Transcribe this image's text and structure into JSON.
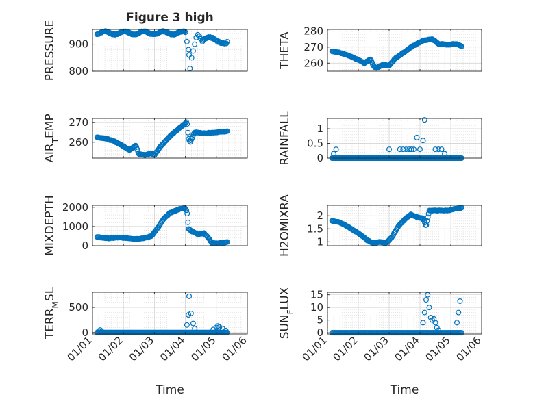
{
  "figure_title": "Figure 3 high",
  "colors": {
    "marker": "#0072BD",
    "axis": "#262626",
    "grid": "#d9d9d9",
    "background": "#ffffff"
  },
  "chart_data": [
    {
      "id": "pressure",
      "type": "scatter",
      "title": "Figure 3 high",
      "ylabel": "PRESSURE",
      "ylabel_base": "PRESSURE",
      "ylabel_sub": "",
      "ylabel_rest": "",
      "ylim": [
        800,
        955
      ],
      "yticks": [
        800,
        900
      ],
      "ytick_labels": [
        "800",
        "900"
      ],
      "xlim": [
        1,
        6
      ],
      "xticks": [
        1,
        2,
        3,
        4,
        5,
        6
      ],
      "xtick_labels": [
        "01/01",
        "01/02",
        "01/03",
        "01/04",
        "01/05",
        "01/06"
      ],
      "show_xticklabels": false,
      "xlabel": "",
      "grid": true,
      "minor_grid": true,
      "segments": [
        {
          "x0": 1.15,
          "x1": 4.0,
          "n": 120,
          "base": 942,
          "amp": 6,
          "freq": 3.2,
          "jitter": 3
        },
        {
          "x0": 4.02,
          "x1": 4.55,
          "n": 24,
          "points": [
            [
              4.05,
              910
            ],
            [
              4.1,
              880
            ],
            [
              4.12,
              860
            ],
            [
              4.15,
              810
            ],
            [
              4.2,
              850
            ],
            [
              4.25,
              875
            ],
            [
              4.3,
              900
            ],
            [
              4.35,
              925
            ],
            [
              4.4,
              935
            ],
            [
              4.45,
              930
            ],
            [
              4.5,
              920
            ],
            [
              4.55,
              910
            ]
          ]
        },
        {
          "x0": 4.55,
          "x1": 5.35,
          "n": 30,
          "base": 915,
          "amp": 12,
          "freq": 2.2,
          "jitter": 6
        }
      ]
    },
    {
      "id": "theta",
      "type": "scatter",
      "ylabel": "THETA",
      "ylabel_base": "THETA",
      "ylabel_sub": "",
      "ylabel_rest": "",
      "ylim": [
        255,
        281
      ],
      "yticks": [
        260,
        270,
        280
      ],
      "ytick_labels": [
        "260",
        "270",
        "280"
      ],
      "xlim": [
        1,
        6
      ],
      "xticks": [
        1,
        2,
        3,
        4,
        5,
        6
      ],
      "xtick_labels": [
        "01/01",
        "01/02",
        "01/03",
        "01/04",
        "01/05",
        "01/06"
      ],
      "show_xticklabels": false,
      "xlabel": "",
      "grid": true,
      "minor_grid": true,
      "curve": [
        [
          1.15,
          267.5
        ],
        [
          1.4,
          266.5
        ],
        [
          1.7,
          264.5
        ],
        [
          2.0,
          262
        ],
        [
          2.2,
          260
        ],
        [
          2.4,
          262.5
        ],
        [
          2.5,
          258
        ],
        [
          2.6,
          257
        ],
        [
          2.8,
          259
        ],
        [
          3.0,
          258.5
        ],
        [
          3.2,
          263
        ],
        [
          3.5,
          267
        ],
        [
          3.8,
          271
        ],
        [
          4.1,
          274
        ],
        [
          4.4,
          275
        ],
        [
          4.6,
          272
        ],
        [
          4.9,
          271.5
        ],
        [
          5.2,
          272
        ],
        [
          5.35,
          270.5
        ]
      ],
      "n": 170
    },
    {
      "id": "air_temp",
      "type": "scatter",
      "ylabel": "AIR_TEMP",
      "ylabel_base": "AIR",
      "ylabel_sub": "T",
      "ylabel_rest": "EMP",
      "ylim": [
        252,
        272
      ],
      "yticks": [
        260,
        270
      ],
      "ytick_labels": [
        "260",
        "270"
      ],
      "xlim": [
        1,
        6
      ],
      "xticks": [
        1,
        2,
        3,
        4,
        5,
        6
      ],
      "xtick_labels": [
        "01/01",
        "01/02",
        "01/03",
        "01/04",
        "01/05",
        "01/06"
      ],
      "show_xticklabels": false,
      "xlabel": "",
      "grid": true,
      "minor_grid": true,
      "curve": [
        [
          1.15,
          262.5
        ],
        [
          1.4,
          262
        ],
        [
          1.7,
          260.5
        ],
        [
          2.0,
          258
        ],
        [
          2.2,
          256
        ],
        [
          2.4,
          258.5
        ],
        [
          2.5,
          254
        ],
        [
          2.7,
          253.5
        ],
        [
          2.9,
          254.5
        ],
        [
          3.0,
          253.5
        ],
        [
          3.2,
          258
        ],
        [
          3.5,
          263
        ],
        [
          3.8,
          267
        ],
        [
          4.0,
          269.5
        ],
        [
          4.05,
          270.5
        ],
        [
          4.1,
          262
        ],
        [
          4.15,
          260
        ],
        [
          4.3,
          265
        ],
        [
          4.6,
          264.5
        ],
        [
          5.0,
          265
        ],
        [
          5.35,
          265.5
        ]
      ],
      "n": 170
    },
    {
      "id": "rainfall",
      "type": "scatter",
      "ylabel": "RAINFALL",
      "ylabel_base": "RAINFALL",
      "ylabel_sub": "",
      "ylabel_rest": "",
      "ylim": [
        0,
        1.35
      ],
      "yticks": [
        0,
        0.5,
        1
      ],
      "ytick_labels": [
        "0",
        "0.5",
        "1"
      ],
      "xlim": [
        1,
        6
      ],
      "xticks": [
        1,
        2,
        3,
        4,
        5,
        6
      ],
      "xtick_labels": [
        "01/01",
        "01/02",
        "01/03",
        "01/04",
        "01/05",
        "01/06"
      ],
      "show_xticklabels": false,
      "xlabel": "",
      "grid": true,
      "minor_grid": true,
      "baseline": {
        "x0": 1.15,
        "x1": 5.35,
        "n": 150,
        "y": 0
      },
      "points": [
        [
          1.2,
          0.15
        ],
        [
          1.28,
          0.3
        ],
        [
          3.0,
          0.3
        ],
        [
          3.35,
          0.3
        ],
        [
          3.45,
          0.3
        ],
        [
          3.55,
          0.3
        ],
        [
          3.65,
          0.3
        ],
        [
          3.72,
          0.3
        ],
        [
          3.8,
          0.3
        ],
        [
          3.9,
          0.7
        ],
        [
          4.0,
          0.3
        ],
        [
          4.1,
          0.6
        ],
        [
          4.15,
          1.3
        ],
        [
          4.5,
          0.3
        ],
        [
          4.6,
          0.3
        ],
        [
          4.7,
          0.3
        ],
        [
          4.8,
          0.15
        ]
      ]
    },
    {
      "id": "mixdepth",
      "type": "scatter",
      "ylabel": "MIXDEPTH",
      "ylabel_base": "MIXDEPTH",
      "ylabel_sub": "",
      "ylabel_rest": "",
      "ylim": [
        0,
        2100
      ],
      "yticks": [
        0,
        1000,
        2000
      ],
      "ytick_labels": [
        "0",
        "1000",
        "2000"
      ],
      "xlim": [
        1,
        6
      ],
      "xticks": [
        1,
        2,
        3,
        4,
        5,
        6
      ],
      "xtick_labels": [
        "01/01",
        "01/02",
        "01/03",
        "01/04",
        "01/05",
        "01/06"
      ],
      "show_xticklabels": false,
      "xlabel": "",
      "grid": true,
      "minor_grid": true,
      "curve": [
        [
          1.15,
          450
        ],
        [
          1.5,
          380
        ],
        [
          1.8,
          420
        ],
        [
          2.1,
          400
        ],
        [
          2.4,
          350
        ],
        [
          2.7,
          400
        ],
        [
          2.9,
          500
        ],
        [
          3.1,
          900
        ],
        [
          3.3,
          1400
        ],
        [
          3.5,
          1700
        ],
        [
          3.8,
          1900
        ],
        [
          4.0,
          1950
        ],
        [
          4.05,
          1800
        ],
        [
          4.1,
          900
        ],
        [
          4.2,
          750
        ],
        [
          4.4,
          600
        ],
        [
          4.6,
          650
        ],
        [
          4.75,
          400
        ],
        [
          4.85,
          150
        ],
        [
          5.0,
          120
        ],
        [
          5.35,
          180
        ]
      ],
      "n": 170
    },
    {
      "id": "h2omixra",
      "type": "scatter",
      "ylabel": "H2OMIXRA",
      "ylabel_base": "H2OMIXRA",
      "ylabel_sub": "",
      "ylabel_rest": "",
      "ylim": [
        0.85,
        2.4
      ],
      "yticks": [
        1,
        1.5,
        2
      ],
      "ytick_labels": [
        "1",
        "1.5",
        "2"
      ],
      "xlim": [
        1,
        6
      ],
      "xticks": [
        1,
        2,
        3,
        4,
        5,
        6
      ],
      "xtick_labels": [
        "01/01",
        "01/02",
        "01/03",
        "01/04",
        "01/05",
        "01/06"
      ],
      "show_xticklabels": false,
      "xlabel": "",
      "grid": true,
      "minor_grid": true,
      "curve": [
        [
          1.15,
          1.8
        ],
        [
          1.4,
          1.75
        ],
        [
          1.7,
          1.55
        ],
        [
          1.9,
          1.4
        ],
        [
          2.1,
          1.25
        ],
        [
          2.3,
          1.05
        ],
        [
          2.5,
          0.95
        ],
        [
          2.7,
          1.0
        ],
        [
          2.9,
          0.95
        ],
        [
          3.1,
          1.2
        ],
        [
          3.3,
          1.6
        ],
        [
          3.5,
          1.85
        ],
        [
          3.7,
          2.05
        ],
        [
          3.9,
          1.95
        ],
        [
          4.1,
          1.9
        ],
        [
          4.2,
          1.6
        ],
        [
          4.3,
          2.2
        ],
        [
          4.6,
          2.2
        ],
        [
          4.9,
          2.2
        ],
        [
          5.1,
          2.25
        ],
        [
          5.35,
          2.3
        ]
      ],
      "n": 170
    },
    {
      "id": "terr_msl",
      "type": "scatter",
      "ylabel": "TERR_MSL",
      "ylabel_base": "TERR",
      "ylabel_sub": "M",
      "ylabel_rest": "SL",
      "ylim": [
        -30,
        800
      ],
      "yticks": [
        0,
        500
      ],
      "ytick_labels": [
        "0",
        "500"
      ],
      "xlim": [
        1,
        6
      ],
      "xticks": [
        1,
        2,
        3,
        4,
        5,
        6
      ],
      "xtick_labels": [
        "01/01",
        "01/02",
        "01/03",
        "01/04",
        "01/05",
        "01/06"
      ],
      "show_xticklabels": true,
      "xlabel": "Time",
      "grid": true,
      "minor_grid": true,
      "baseline": {
        "x0": 1.15,
        "x1": 5.35,
        "n": 150,
        "y": 0
      },
      "points": [
        [
          1.2,
          30
        ],
        [
          1.25,
          50
        ],
        [
          1.3,
          20
        ],
        [
          4.05,
          150
        ],
        [
          4.1,
          350
        ],
        [
          4.12,
          720
        ],
        [
          4.18,
          380
        ],
        [
          4.25,
          180
        ],
        [
          4.3,
          80
        ],
        [
          4.9,
          60
        ],
        [
          5.0,
          100
        ],
        [
          5.05,
          130
        ],
        [
          5.1,
          110
        ],
        [
          5.2,
          80
        ],
        [
          5.3,
          40
        ]
      ]
    },
    {
      "id": "sun_flux",
      "type": "scatter",
      "ylabel": "SUN_FLUX",
      "ylabel_base": "SUN",
      "ylabel_sub": "F",
      "ylabel_rest": "LUX",
      "ylim": [
        -0.5,
        16
      ],
      "yticks": [
        0,
        5,
        10,
        15
      ],
      "ytick_labels": [
        "0",
        "5",
        "10",
        "15"
      ],
      "xlim": [
        1,
        6
      ],
      "xticks": [
        1,
        2,
        3,
        4,
        5,
        6
      ],
      "xtick_labels": [
        "01/01",
        "01/02",
        "01/03",
        "01/04",
        "01/05",
        "01/06"
      ],
      "show_xticklabels": true,
      "xlabel": "Time",
      "grid": true,
      "minor_grid": true,
      "baseline": {
        "x0": 1.15,
        "x1": 5.35,
        "n": 150,
        "y": 0
      },
      "points": [
        [
          4.1,
          4
        ],
        [
          4.15,
          8
        ],
        [
          4.2,
          13
        ],
        [
          4.25,
          15
        ],
        [
          4.3,
          10
        ],
        [
          4.35,
          6
        ],
        [
          4.4,
          5
        ],
        [
          4.45,
          5.5
        ],
        [
          4.5,
          4
        ],
        [
          4.55,
          2
        ],
        [
          4.6,
          1
        ],
        [
          5.2,
          4
        ],
        [
          5.25,
          8
        ],
        [
          5.3,
          12.5
        ]
      ]
    }
  ]
}
